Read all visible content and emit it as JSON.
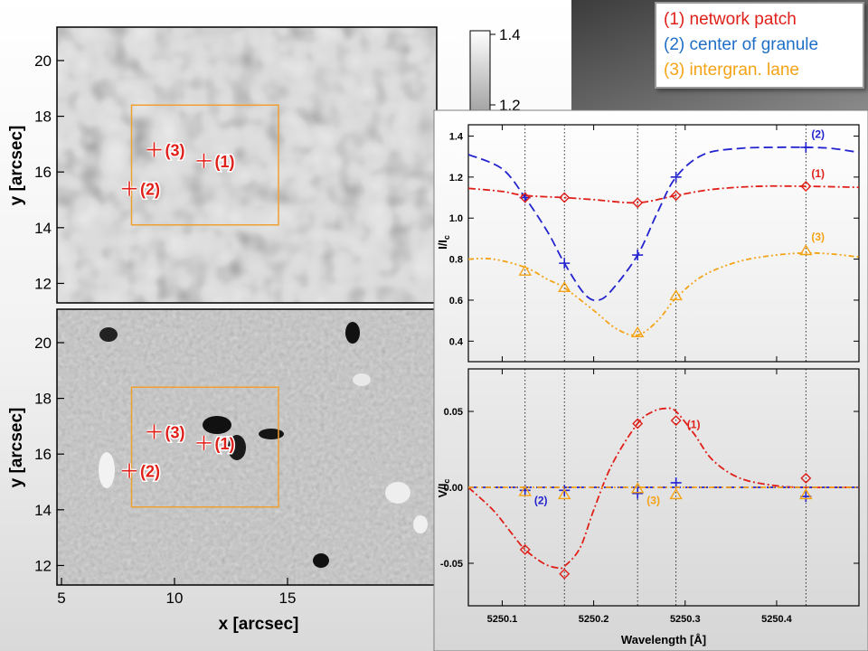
{
  "legend": [
    {
      "label": "(1) network patch",
      "color": "#e0201a"
    },
    {
      "label": "(2) center of granule",
      "color": "#1f6fc8"
    },
    {
      "label": "(3) intergran. lane",
      "color": "#f5a316"
    }
  ],
  "colors": {
    "series1": "#e0201a",
    "series2": "#2323d0",
    "series3": "#f5a316",
    "box": "#f0a030",
    "vline": "#000000"
  },
  "chart_data": [
    {
      "type": "heatmap",
      "panel": "continuum-intensity-map",
      "xlabel": "",
      "ylabel": "y [arcsec]",
      "xlim": [
        4.8,
        21.6
      ],
      "ylim": [
        11.3,
        21.2
      ],
      "yticks": [
        12,
        14,
        16,
        18,
        20
      ],
      "ytick_labels": [
        "12",
        "14",
        "16",
        "18",
        "20"
      ],
      "colorbar_ticks": [
        1.2,
        1.4
      ],
      "colorbar_tick_labels": [
        "1.2",
        "1.4"
      ],
      "region_box": {
        "x": [
          8.1,
          14.6
        ],
        "y": [
          14.1,
          18.4
        ]
      },
      "markers": [
        {
          "label": "(1)",
          "x": 11.3,
          "y": 16.4
        },
        {
          "label": "(2)",
          "x": 8.0,
          "y": 15.4
        },
        {
          "label": "(3)",
          "x": 9.1,
          "y": 16.8
        }
      ]
    },
    {
      "type": "heatmap",
      "panel": "circular-polarization-map",
      "xlabel": "x [arcsec]",
      "ylabel": "y [arcsec]",
      "xlim": [
        4.8,
        21.6
      ],
      "ylim": [
        11.3,
        21.2
      ],
      "xticks": [
        5,
        10,
        15
      ],
      "xtick_labels": [
        "5",
        "10",
        "15"
      ],
      "yticks": [
        12,
        14,
        16,
        18,
        20
      ],
      "ytick_labels": [
        "12",
        "14",
        "16",
        "18",
        "20"
      ],
      "region_box": {
        "x": [
          8.1,
          14.6
        ],
        "y": [
          14.1,
          18.4
        ]
      },
      "markers": [
        {
          "label": "(1)",
          "x": 11.3,
          "y": 16.4
        },
        {
          "label": "(2)",
          "x": 8.0,
          "y": 15.4
        },
        {
          "label": "(3)",
          "x": 9.1,
          "y": 16.8
        }
      ]
    },
    {
      "type": "line",
      "panel": "intensity-profiles",
      "ylabel": "I/I",
      "ylabel_sub": "c",
      "xlim": [
        5250.063,
        5250.49
      ],
      "ylim": [
        0.3,
        1.455
      ],
      "yticks": [
        0.4,
        0.6,
        0.8,
        1.0,
        1.2,
        1.4
      ],
      "ytick_labels": [
        "0.4",
        "0.6",
        "0.8",
        "1.0",
        "1.2",
        "1.4"
      ],
      "vlines": [
        5250.125,
        5250.168,
        5250.248,
        5250.29,
        5250.432
      ],
      "series": [
        {
          "key": "s2",
          "name": "(2)",
          "x": [
            5250.063,
            5250.1,
            5250.125,
            5250.15,
            5250.168,
            5250.19,
            5250.205,
            5250.22,
            5250.248,
            5250.27,
            5250.29,
            5250.32,
            5250.36,
            5250.4,
            5250.432,
            5250.46,
            5250.49
          ],
          "y": [
            1.31,
            1.24,
            1.1,
            0.93,
            0.78,
            0.63,
            0.6,
            0.65,
            0.82,
            1.03,
            1.2,
            1.31,
            1.34,
            1.345,
            1.345,
            1.34,
            1.32
          ],
          "markers": {
            "x": [
              5250.125,
              5250.168,
              5250.248,
              5250.29,
              5250.432
            ],
            "y": [
              1.1,
              0.78,
              0.82,
              1.2,
              1.345
            ]
          }
        },
        {
          "key": "s1",
          "name": "(1)",
          "x": [
            5250.063,
            5250.1,
            5250.125,
            5250.168,
            5250.2,
            5250.248,
            5250.29,
            5250.33,
            5250.38,
            5250.432,
            5250.49
          ],
          "y": [
            1.145,
            1.13,
            1.11,
            1.1,
            1.09,
            1.075,
            1.11,
            1.14,
            1.155,
            1.155,
            1.15
          ],
          "markers": {
            "x": [
              5250.125,
              5250.168,
              5250.248,
              5250.29,
              5250.432
            ],
            "y": [
              1.1,
              1.1,
              1.075,
              1.11,
              1.155
            ]
          }
        },
        {
          "key": "s3",
          "name": "(3)",
          "x": [
            5250.063,
            5250.09,
            5250.125,
            5250.15,
            5250.168,
            5250.2,
            5250.225,
            5250.248,
            5250.27,
            5250.29,
            5250.32,
            5250.36,
            5250.4,
            5250.432,
            5250.46,
            5250.49
          ],
          "y": [
            0.8,
            0.8,
            0.76,
            0.7,
            0.66,
            0.55,
            0.46,
            0.43,
            0.5,
            0.61,
            0.72,
            0.79,
            0.82,
            0.83,
            0.825,
            0.81
          ],
          "markers": {
            "x": [
              5250.125,
              5250.168,
              5250.248,
              5250.29,
              5250.432
            ],
            "y": [
              0.74,
              0.66,
              0.44,
              0.62,
              0.84
            ]
          }
        }
      ]
    },
    {
      "type": "line",
      "panel": "stokes-v-profiles",
      "xlabel": "Wavelength [Å]",
      "ylabel": "V/I",
      "ylabel_sub": "c",
      "xlim": [
        5250.063,
        5250.49
      ],
      "ylim": [
        -0.078,
        0.078
      ],
      "xticks": [
        5250.1,
        5250.2,
        5250.3,
        5250.4
      ],
      "xtick_labels": [
        "5250.1",
        "5250.2",
        "5250.3",
        "5250.4"
      ],
      "yticks": [
        -0.05,
        0.0,
        0.05
      ],
      "ytick_labels": [
        "-0.05",
        "0.00",
        "0.05"
      ],
      "vlines": [
        5250.125,
        5250.168,
        5250.248,
        5250.29,
        5250.432
      ],
      "series": [
        {
          "key": "s1",
          "name": "(1)",
          "x": [
            5250.063,
            5250.09,
            5250.11,
            5250.125,
            5250.145,
            5250.16,
            5250.168,
            5250.185,
            5250.2,
            5250.22,
            5250.248,
            5250.265,
            5250.28,
            5250.29,
            5250.31,
            5250.33,
            5250.36,
            5250.4,
            5250.432,
            5250.49
          ],
          "y": [
            0.0,
            -0.015,
            -0.03,
            -0.041,
            -0.05,
            -0.053,
            -0.052,
            -0.04,
            -0.015,
            0.015,
            0.042,
            0.05,
            0.052,
            0.05,
            0.035,
            0.018,
            0.006,
            0.001,
            0.0,
            0.0
          ],
          "markers": {
            "x": [
              5250.125,
              5250.168,
              5250.248,
              5250.29,
              5250.432
            ],
            "y": [
              -0.041,
              -0.057,
              0.042,
              0.044,
              0.006
            ]
          }
        },
        {
          "key": "s2",
          "name": "(2)",
          "x": [
            5250.063,
            5250.49
          ],
          "y": [
            0.0,
            0.0
          ],
          "markers": {
            "x": [
              5250.125,
              5250.168,
              5250.248,
              5250.29,
              5250.432
            ],
            "y": [
              -0.002,
              -0.002,
              -0.004,
              0.003,
              -0.006
            ]
          }
        },
        {
          "key": "s3",
          "name": "(3)",
          "x": [
            5250.063,
            5250.49
          ],
          "y": [
            0.0,
            0.0
          ],
          "markers": {
            "x": [
              5250.125,
              5250.168,
              5250.248,
              5250.29,
              5250.432
            ],
            "y": [
              -0.003,
              -0.005,
              -0.001,
              -0.005,
              -0.005
            ]
          }
        }
      ]
    }
  ]
}
